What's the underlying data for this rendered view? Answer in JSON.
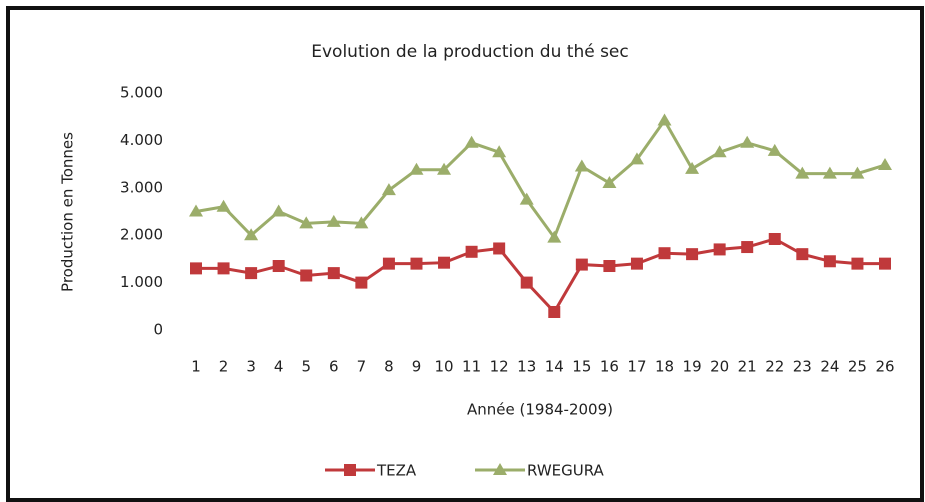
{
  "chart_data": {
    "type": "line",
    "title": "Evolution de la production du thé sec",
    "x_label": "Année (1984-2009)",
    "y_label": "Production en Tonnes",
    "categories": [
      1,
      2,
      3,
      4,
      5,
      6,
      7,
      8,
      9,
      10,
      11,
      12,
      13,
      14,
      15,
      16,
      17,
      18,
      19,
      20,
      21,
      22,
      23,
      24,
      25,
      26
    ],
    "ylim": [
      0,
      5000
    ],
    "yticks": [
      0,
      {
        "value": 1000,
        "label": "1.000"
      },
      {
        "value": 2000,
        "label": "2.000"
      },
      {
        "value": 3000,
        "label": "3.000"
      },
      {
        "value": 4000,
        "label": "4.000"
      },
      {
        "value": 5000,
        "label": "5.000"
      }
    ],
    "legend": "bottom",
    "series": [
      {
        "name": "TEZA",
        "color": "#c0393b",
        "marker": "square",
        "values": [
          1300,
          1300,
          1200,
          1350,
          1150,
          1200,
          1000,
          1400,
          1400,
          1420,
          1650,
          1720,
          1000,
          380,
          1380,
          1350,
          1400,
          1620,
          1600,
          1700,
          1750,
          1920,
          1600,
          1450,
          1400,
          1400
        ]
      },
      {
        "name": "RWEGURA",
        "color": "#9bad6a",
        "marker": "triangle",
        "values": [
          2500,
          2600,
          2000,
          2500,
          2250,
          2280,
          2250,
          2950,
          3380,
          3380,
          3950,
          3750,
          2750,
          1950,
          3450,
          3100,
          3600,
          4420,
          3400,
          3750,
          3950,
          3780,
          3300,
          3300,
          3300,
          3480
        ]
      }
    ]
  }
}
